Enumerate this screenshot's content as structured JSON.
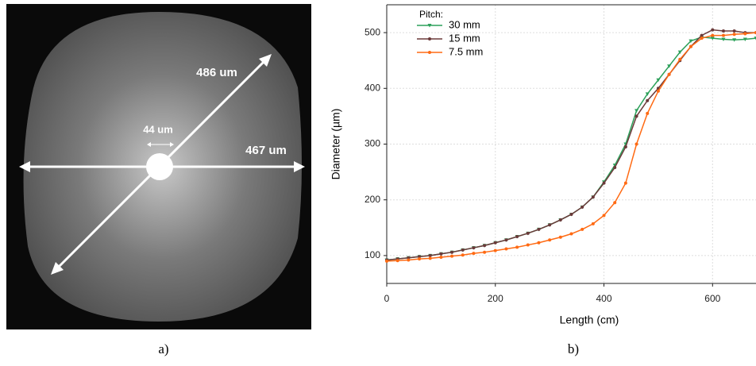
{
  "panel_a": {
    "annotations": [
      "486 um",
      "44 um",
      "467 um"
    ],
    "caption": "a)"
  },
  "panel_b": {
    "caption": "b)"
  },
  "chart_data": {
    "type": "line",
    "x_label": "Length (cm)",
    "y_label": "Diameter (µm)",
    "legend_title": "Pitch:",
    "x": [
      0,
      20,
      40,
      60,
      80,
      100,
      120,
      140,
      160,
      180,
      200,
      220,
      240,
      260,
      280,
      300,
      320,
      340,
      360,
      380,
      400,
      420,
      440,
      460,
      480,
      500,
      520,
      540,
      560,
      580,
      600,
      620,
      640,
      660,
      680
    ],
    "series": [
      {
        "name": "30 mm",
        "color": "#2ca05a",
        "marker": "triangle",
        "values": [
          92,
          94,
          96,
          98,
          100,
          103,
          106,
          110,
          114,
          118,
          123,
          128,
          134,
          140,
          147,
          155,
          164,
          174,
          187,
          205,
          232,
          262,
          300,
          360,
          390,
          415,
          440,
          465,
          485,
          492,
          490,
          488,
          487,
          488,
          490
        ]
      },
      {
        "name": "15 mm",
        "color": "#6b3a3a",
        "marker": "circle",
        "values": [
          92,
          94,
          96,
          98,
          100,
          103,
          106,
          110,
          114,
          118,
          123,
          128,
          134,
          140,
          147,
          155,
          164,
          174,
          187,
          205,
          230,
          258,
          295,
          350,
          378,
          400,
          425,
          450,
          475,
          495,
          505,
          503,
          503,
          500,
          500
        ]
      },
      {
        "name": "7.5 mm",
        "color": "#ff6a13",
        "marker": "circle",
        "values": [
          90,
          91,
          92,
          94,
          95,
          97,
          99,
          101,
          104,
          106,
          109,
          112,
          115,
          119,
          123,
          128,
          133,
          139,
          147,
          157,
          172,
          195,
          230,
          300,
          355,
          395,
          425,
          452,
          475,
          490,
          495,
          495,
          497,
          498,
          500
        ]
      }
    ],
    "xlim": [
      0,
      680
    ],
    "ylim": [
      50,
      550
    ],
    "xticks": [
      0,
      200,
      400,
      600
    ],
    "yticks": [
      100,
      200,
      300,
      400,
      500
    ],
    "grid": true,
    "legend": "upper-left"
  }
}
